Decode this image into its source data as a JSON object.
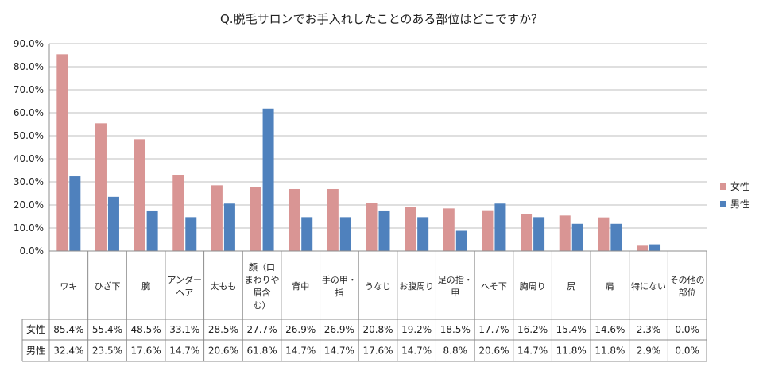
{
  "chart_data": {
    "type": "bar",
    "title": "Q.脱毛サロンでお手入れしたことのある部位はどこですか？",
    "categories": [
      [
        "ワキ"
      ],
      [
        "ひざ下"
      ],
      [
        "腕"
      ],
      [
        "アンダー",
        "ヘア"
      ],
      [
        "太もも"
      ],
      [
        "顔（口",
        "まわりや",
        "眉含",
        "む）"
      ],
      [
        "背中"
      ],
      [
        "手の甲・",
        "指"
      ],
      [
        "うなじ"
      ],
      [
        "お腹周り"
      ],
      [
        "足の指・",
        "甲"
      ],
      [
        "へそ下"
      ],
      [
        "胸周り"
      ],
      [
        "尻"
      ],
      [
        "肩"
      ],
      [
        "特にない"
      ],
      [
        "その他の",
        "部位"
      ]
    ],
    "series": [
      {
        "name": "女性",
        "color": "#d99594",
        "values": [
          85.4,
          55.4,
          48.5,
          33.1,
          28.5,
          27.7,
          26.9,
          26.9,
          20.8,
          19.2,
          18.5,
          17.7,
          16.2,
          15.4,
          14.6,
          2.3,
          0.0
        ],
        "labels": [
          "85.4%",
          "55.4%",
          "48.5%",
          "33.1%",
          "28.5%",
          "27.7%",
          "26.9%",
          "26.9%",
          "20.8%",
          "19.2%",
          "18.5%",
          "17.7%",
          "16.2%",
          "15.4%",
          "14.6%",
          "2.3%",
          "0.0%"
        ]
      },
      {
        "name": "男性",
        "color": "#4f81bd",
        "values": [
          32.4,
          23.5,
          17.6,
          14.7,
          20.6,
          61.8,
          14.7,
          14.7,
          17.6,
          14.7,
          8.8,
          20.6,
          14.7,
          11.8,
          11.8,
          2.9,
          0.0
        ],
        "labels": [
          "32.4%",
          "23.5%",
          "17.6%",
          "14.7%",
          "20.6%",
          "61.8%",
          "14.7%",
          "14.7%",
          "17.6%",
          "14.7%",
          "8.8%",
          "20.6%",
          "14.7%",
          "11.8%",
          "11.8%",
          "2.9%",
          "0.0%"
        ]
      }
    ],
    "ylim": [
      0,
      90
    ],
    "yticks": [
      "0.0%",
      "10.0%",
      "20.0%",
      "30.0%",
      "40.0%",
      "50.0%",
      "60.0%",
      "70.0%",
      "80.0%",
      "90.0%"
    ],
    "grid": true,
    "legend": "right",
    "data_table": true
  }
}
